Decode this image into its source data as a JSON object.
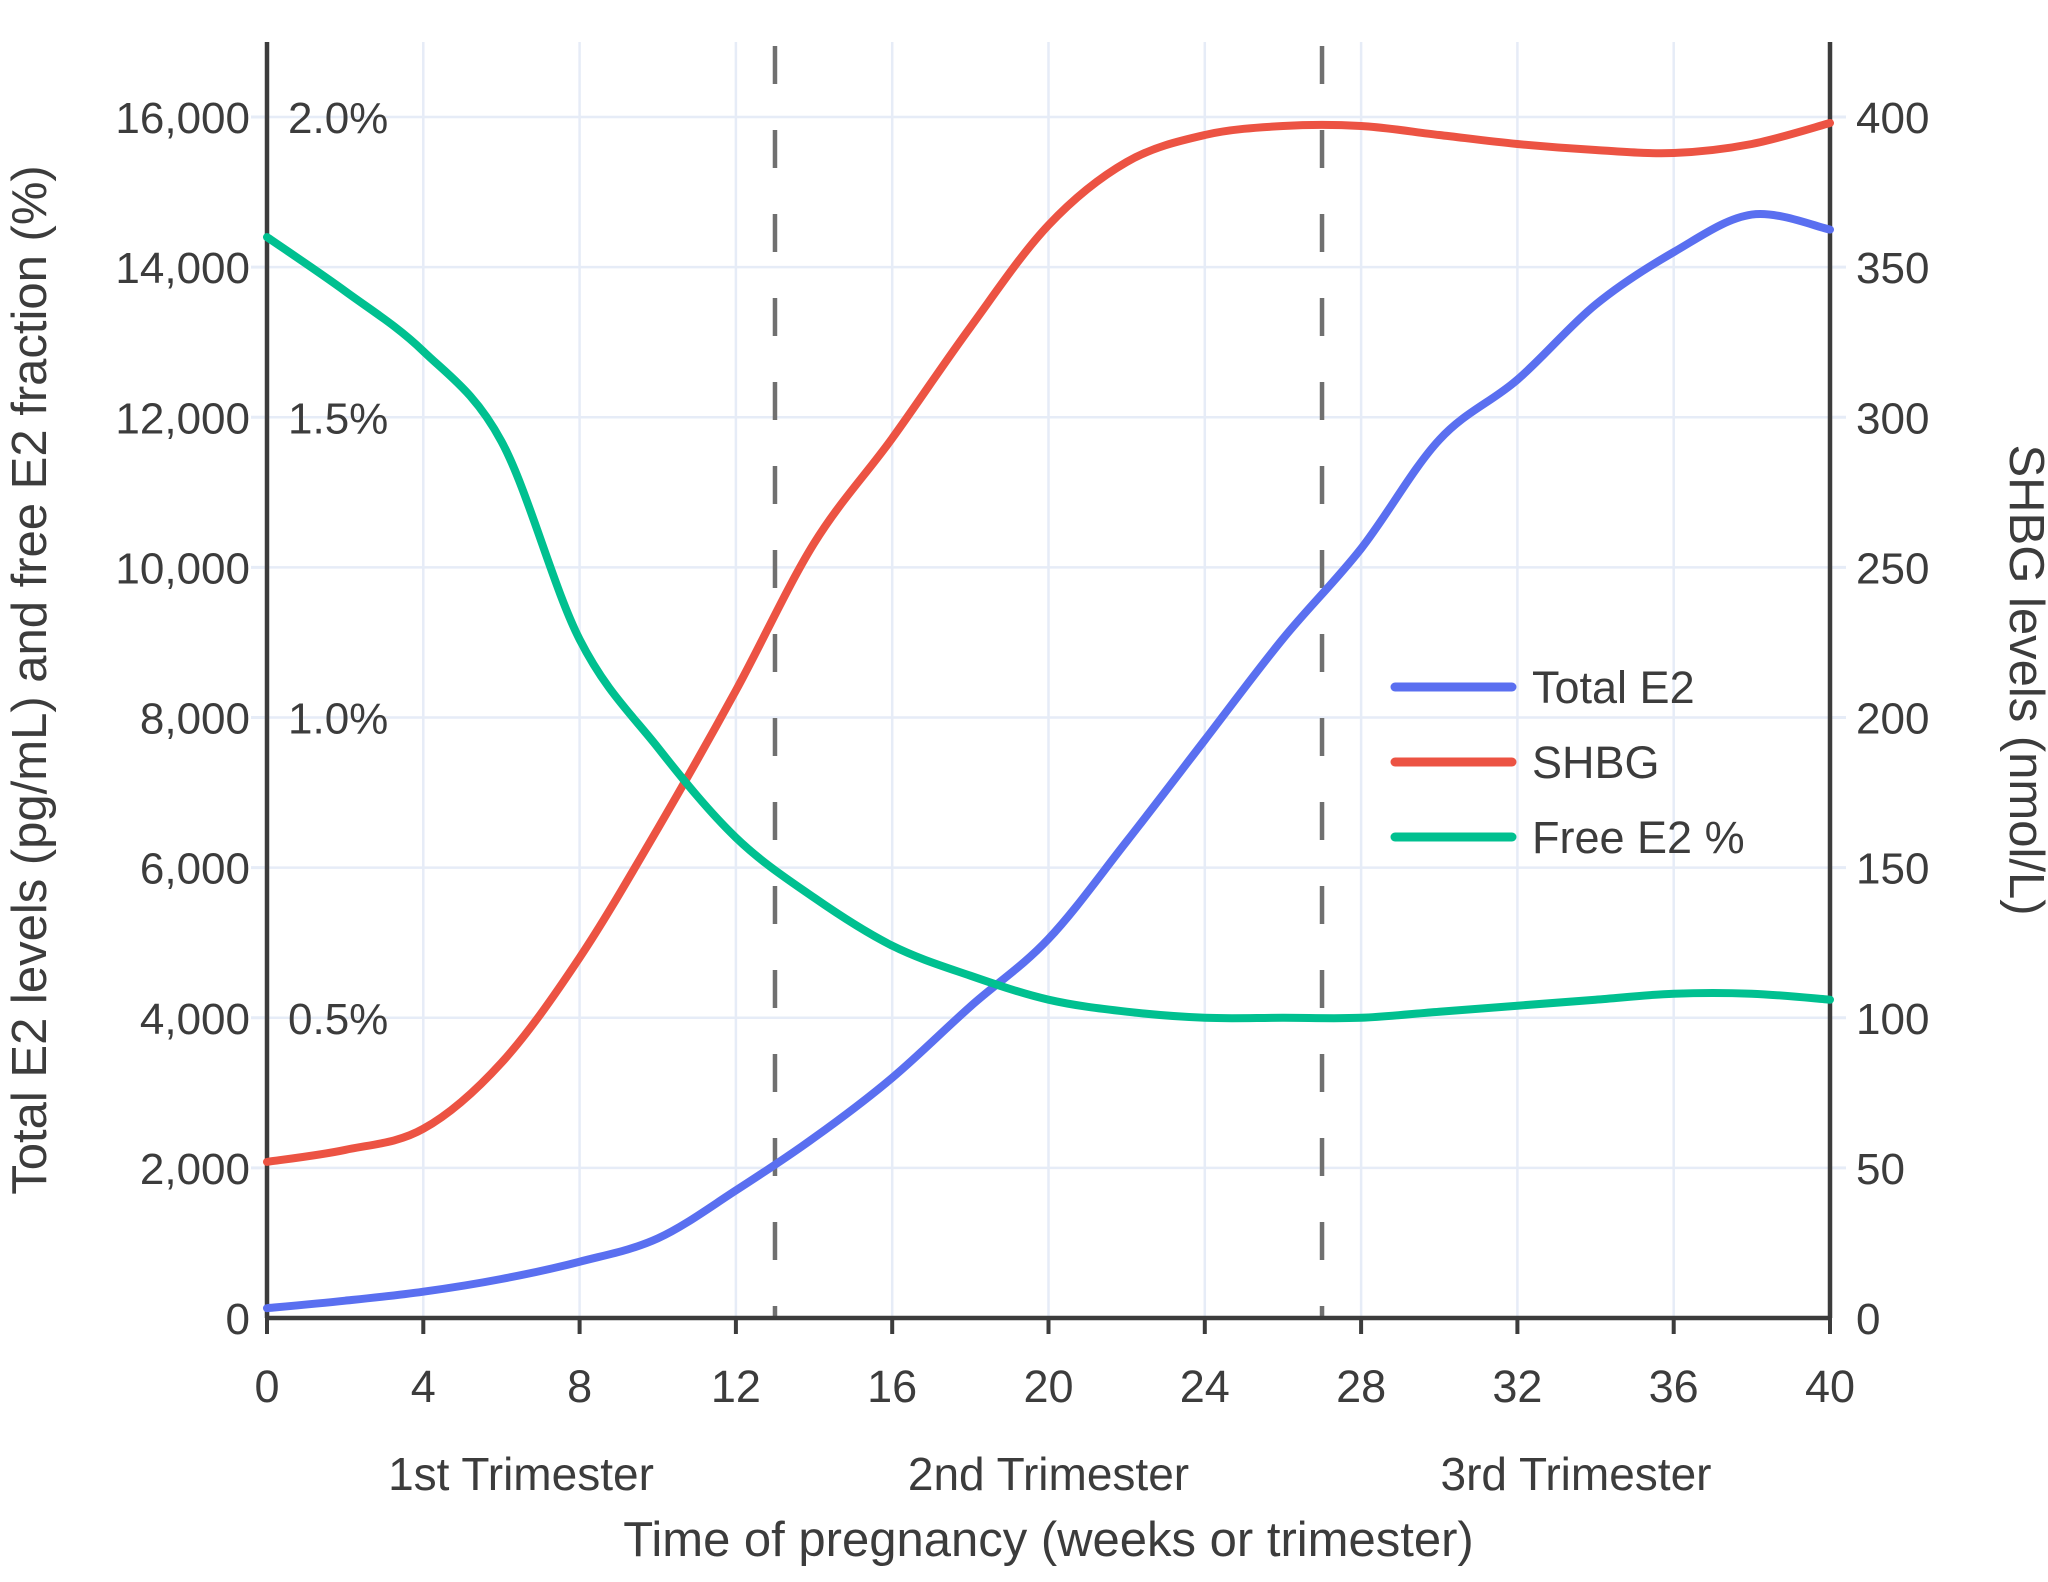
{
  "chart_data": {
    "type": "line",
    "title": "",
    "xlabel": "Time of pregnancy (weeks or trimester)",
    "ylabel_left": "Total E2 levels (pg/mL) and free E2 fraction (%)",
    "ylabel_right": "SHBG levels (nmol/L)",
    "x_range": [
      0,
      40
    ],
    "x_tick_values": [
      0,
      4,
      8,
      12,
      16,
      20,
      24,
      28,
      32,
      36,
      40
    ],
    "x_tick_labels": [
      "0",
      "4",
      "8",
      "12",
      "16",
      "20",
      "24",
      "28",
      "32",
      "36",
      "40"
    ],
    "left_axis": {
      "range": [
        0,
        17000
      ],
      "tick_values": [
        0,
        2000,
        4000,
        6000,
        8000,
        10000,
        12000,
        14000,
        16000
      ],
      "tick_labels": [
        "0",
        "2,000",
        "4,000",
        "6,000",
        "8,000",
        "10,000",
        "12,000",
        "14,000",
        "16,000"
      ]
    },
    "right_axis": {
      "range": [
        0,
        425
      ],
      "tick_values": [
        0,
        50,
        100,
        150,
        200,
        250,
        300,
        350,
        400
      ],
      "tick_labels": [
        "0",
        "50",
        "100",
        "150",
        "200",
        "250",
        "300",
        "350",
        "400"
      ]
    },
    "pct_axis_labels": [
      {
        "label": "2.0%",
        "left_value": 16000
      },
      {
        "label": "1.5%",
        "left_value": 12000
      },
      {
        "label": "1.0%",
        "left_value": 8000
      },
      {
        "label": "0.5%",
        "left_value": 4000
      }
    ],
    "weeks": [
      0,
      2,
      4,
      6,
      8,
      10,
      12,
      14,
      16,
      18,
      20,
      22,
      24,
      26,
      28,
      30,
      32,
      34,
      36,
      38,
      40
    ],
    "series": [
      {
        "name": "Total E2",
        "axis": "left",
        "color": "#5A6FF0",
        "values": [
          130,
          230,
          350,
          520,
          750,
          1060,
          1700,
          2400,
          3200,
          4150,
          5050,
          6350,
          7700,
          9050,
          10250,
          11700,
          12500,
          13500,
          14200,
          14700,
          14500
        ]
      },
      {
        "name": "SHBG",
        "axis": "right",
        "color": "#EC5343",
        "values": [
          52,
          56,
          63,
          85,
          120,
          163,
          209,
          258,
          293,
          330,
          364,
          385,
          394,
          397,
          397,
          394,
          391,
          389,
          388,
          391,
          398
        ]
      },
      {
        "name": "Free E2 %",
        "axis": "pct",
        "color": "#00C090",
        "values": [
          1.8,
          1.71,
          1.61,
          1.46,
          1.13,
          0.95,
          0.8,
          0.7,
          0.62,
          0.57,
          0.53,
          0.51,
          0.5,
          0.5,
          0.5,
          0.51,
          0.52,
          0.53,
          0.54,
          0.54,
          0.53
        ]
      }
    ],
    "pct_to_left_factor": 8000,
    "right_to_left_factor": 40,
    "dashed_week_lines": [
      13,
      27
    ],
    "trimester_labels": [
      "1st Trimester",
      "2nd Trimester",
      "3rd Trimester"
    ],
    "legend": {
      "items": [
        "Total E2",
        "SHBG",
        "Free E2 %"
      ],
      "position": "inside-right"
    },
    "grid": true,
    "colors": {
      "grid": "#E6ECF7",
      "axis": "#3C3C3C",
      "text": "#3C3C3C",
      "dashed": "#707070",
      "background": "#FFFFFF"
    }
  }
}
